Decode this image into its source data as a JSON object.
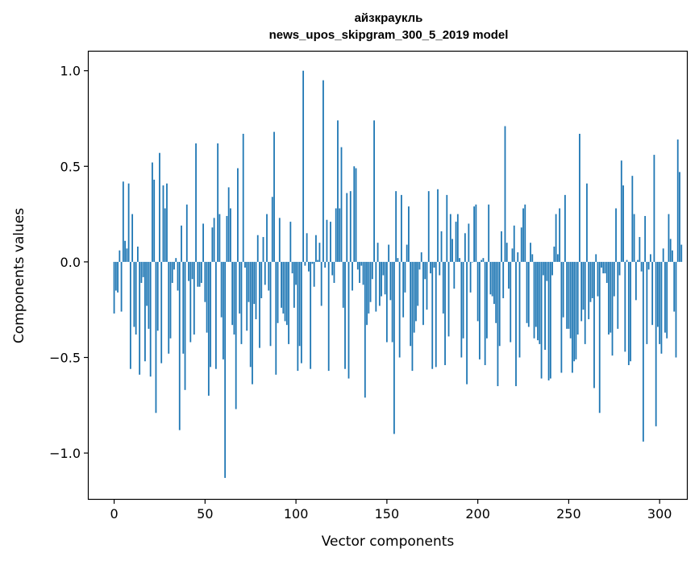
{
  "chart_data": {
    "type": "bar",
    "title": [
      "айзкраукль",
      "news_upos_skipgram_300_5_2019 model"
    ],
    "xlabel": "Vector components",
    "ylabel": "Components values",
    "xlim": [
      -14,
      315
    ],
    "ylim": [
      -1.24,
      1.1
    ],
    "xticks": [
      0,
      50,
      100,
      150,
      200,
      250,
      300
    ],
    "xtick_labels": [
      "0",
      "50",
      "100",
      "150",
      "200",
      "250",
      "300"
    ],
    "yticks": [
      -1.0,
      -0.5,
      0.0,
      0.5,
      1.0
    ],
    "ytick_labels": [
      "−1.0",
      "−0.5",
      "0.0",
      "0.5",
      "1.0"
    ],
    "bar_color": "#1f77b4",
    "values": [
      -0.27,
      -0.15,
      -0.16,
      0.06,
      -0.26,
      0.42,
      0.11,
      0.07,
      0.41,
      -0.56,
      0.25,
      -0.34,
      -0.38,
      0.08,
      -0.59,
      -0.11,
      -0.08,
      -0.52,
      -0.23,
      -0.35,
      -0.6,
      0.52,
      0.43,
      -0.79,
      -0.36,
      0.57,
      -0.53,
      0.4,
      0.28,
      0.41,
      -0.48,
      -0.4,
      -0.11,
      -0.04,
      0.02,
      -0.15,
      -0.88,
      0.19,
      -0.48,
      -0.67,
      0.3,
      -0.1,
      -0.42,
      -0.09,
      -0.38,
      0.62,
      -0.13,
      -0.13,
      -0.11,
      0.2,
      -0.21,
      -0.37,
      -0.7,
      -0.55,
      0.18,
      0.23,
      -0.56,
      0.62,
      0.25,
      -0.29,
      -0.51,
      -1.13,
      0.24,
      0.39,
      0.28,
      -0.33,
      -0.38,
      -0.77,
      0.49,
      -0.27,
      -0.43,
      0.67,
      -0.03,
      -0.36,
      -0.21,
      -0.55,
      -0.64,
      -0.22,
      -0.3,
      0.14,
      -0.45,
      -0.19,
      0.13,
      -0.12,
      0.25,
      -0.15,
      -0.44,
      0.34,
      0.68,
      -0.59,
      -0.32,
      0.23,
      -0.24,
      -0.27,
      -0.31,
      -0.33,
      -0.43,
      0.21,
      -0.06,
      -0.24,
      -0.12,
      -0.57,
      -0.44,
      -0.53,
      1.0,
      -0.02,
      0.15,
      -0.05,
      -0.56,
      -0.01,
      -0.13,
      0.14,
      0.01,
      0.1,
      -0.23,
      0.95,
      -0.03,
      0.22,
      -0.57,
      0.21,
      -0.07,
      -0.11,
      0.28,
      0.74,
      0.28,
      0.6,
      -0.24,
      -0.56,
      0.36,
      -0.61,
      0.37,
      -0.15,
      0.5,
      0.49,
      -0.04,
      -0.11,
      -0.02,
      -0.12,
      -0.71,
      -0.33,
      -0.27,
      -0.21,
      -0.09,
      0.74,
      -0.26,
      0.1,
      -0.23,
      -0.18,
      -0.07,
      -0.17,
      -0.42,
      0.09,
      -0.2,
      -0.42,
      -0.9,
      0.37,
      0.02,
      -0.5,
      0.35,
      -0.29,
      -0.16,
      0.09,
      0.29,
      -0.44,
      -0.57,
      -0.37,
      -0.31,
      -0.23,
      -0.04,
      0.05,
      -0.33,
      -0.09,
      -0.25,
      0.37,
      -0.06,
      -0.56,
      -0.03,
      -0.55,
      0.38,
      -0.07,
      0.16,
      -0.27,
      -0.54,
      0.35,
      -0.39,
      0.25,
      0.12,
      -0.14,
      0.21,
      0.25,
      0.02,
      -0.5,
      -0.4,
      0.15,
      -0.64,
      0.2,
      -0.16,
      0.0,
      0.29,
      0.3,
      -0.31,
      -0.51,
      0.01,
      0.02,
      -0.54,
      -0.4,
      0.3,
      -0.17,
      -0.18,
      -0.22,
      -0.32,
      -0.65,
      -0.44,
      0.16,
      -0.19,
      0.71,
      0.1,
      -0.14,
      -0.42,
      0.07,
      0.19,
      -0.65,
      0.05,
      -0.5,
      0.18,
      0.28,
      0.3,
      -0.32,
      -0.34,
      0.1,
      0.04,
      -0.4,
      -0.34,
      -0.41,
      -0.43,
      -0.61,
      -0.07,
      -0.46,
      -0.1,
      -0.62,
      -0.61,
      -0.07,
      0.08,
      0.25,
      0.04,
      0.28,
      -0.58,
      -0.29,
      0.35,
      -0.35,
      -0.35,
      -0.4,
      -0.58,
      -0.52,
      -0.51,
      -0.38,
      0.67,
      -0.31,
      -0.25,
      -0.43,
      0.41,
      -0.3,
      -0.21,
      -0.19,
      -0.66,
      0.04,
      -0.18,
      -0.79,
      -0.03,
      -0.06,
      -0.06,
      -0.11,
      -0.38,
      -0.37,
      -0.49,
      -0.18,
      0.28,
      -0.35,
      -0.07,
      0.53,
      0.4,
      -0.47,
      0.01,
      -0.54,
      -0.52,
      0.45,
      0.25,
      -0.2,
      0.01,
      0.13,
      -0.05,
      -0.94,
      0.24,
      -0.43,
      -0.04,
      0.04,
      -0.33,
      0.56,
      -0.86,
      -0.34,
      -0.43,
      -0.48,
      0.07,
      -0.37,
      -0.4,
      0.25,
      0.12,
      0.06,
      -0.26,
      -0.5,
      0.64,
      0.47,
      0.09
    ]
  }
}
